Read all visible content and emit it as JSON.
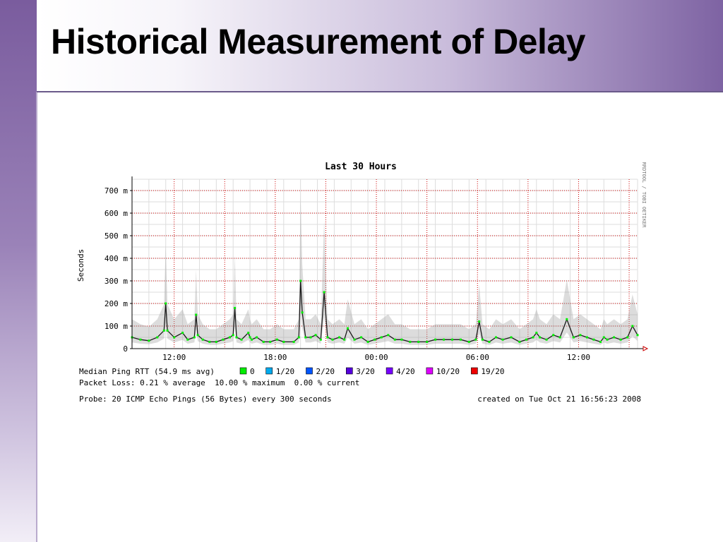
{
  "slide": {
    "title": "Historical Measurement of Delay"
  },
  "colors": {
    "median": "#1a1a1a",
    "loss_0": "#00ee00",
    "loss_1_20": "#00aaee",
    "loss_2_20": "#0055ff",
    "loss_3_20": "#5500dd",
    "loss_4_20": "#7700ff",
    "loss_10_20": "#dd00ff",
    "loss_19_20": "#ee0000",
    "grid_major": "#cc0000",
    "grid_minor": "#dddddd"
  },
  "chart_data": {
    "type": "line",
    "title": "Last 30 Hours",
    "ylabel": "Seconds",
    "side_label": "RRDTOOL / TOBI OETIKER",
    "ylim": [
      0,
      0.75
    ],
    "yticks": [
      {
        "value": 0,
        "label": "0"
      },
      {
        "value": 0.1,
        "label": "100 m"
      },
      {
        "value": 0.2,
        "label": "200 m"
      },
      {
        "value": 0.3,
        "label": "300 m"
      },
      {
        "value": 0.4,
        "label": "400 m"
      },
      {
        "value": 0.5,
        "label": "500 m"
      },
      {
        "value": 0.6,
        "label": "600 m"
      },
      {
        "value": 0.7,
        "label": "700 m"
      }
    ],
    "xlim_hours": [
      0,
      30
    ],
    "xticks": [
      {
        "hour": 2.5,
        "label": "12:00"
      },
      {
        "hour": 8.5,
        "label": "18:00"
      },
      {
        "hour": 14.5,
        "label": "00:00"
      },
      {
        "hour": 20.5,
        "label": "06:00"
      },
      {
        "hour": 26.5,
        "label": "12:00"
      }
    ],
    "series": [
      {
        "name": "Median Ping RTT",
        "x_hours": [
          0,
          0.5,
          1,
          1.5,
          1.9,
          2.0,
          2.1,
          2.5,
          3,
          3.3,
          3.7,
          3.8,
          3.9,
          4.2,
          4.6,
          5,
          5.4,
          5.8,
          6.0,
          6.1,
          6.2,
          6.5,
          6.9,
          7.0,
          7.1,
          7.4,
          7.8,
          8.2,
          8.6,
          9.0,
          9.6,
          9.9,
          10.0,
          10.1,
          10.3,
          10.6,
          10.9,
          11.2,
          11.4,
          11.6,
          11.9,
          12.3,
          12.6,
          12.8,
          13.2,
          13.6,
          14.0,
          14.4,
          14.8,
          15.2,
          15.6,
          16.0,
          16.5,
          17,
          17.5,
          18,
          18.5,
          19,
          19.5,
          20,
          20.4,
          20.6,
          20.8,
          21.2,
          21.6,
          22.0,
          22.5,
          23,
          23.4,
          23.8,
          24.0,
          24.2,
          24.6,
          25,
          25.4,
          25.8,
          26.2,
          26.6,
          27,
          27.4,
          27.8,
          28.0,
          28.2,
          28.6,
          29,
          29.4,
          29.7,
          30
        ],
        "y": [
          0.05,
          0.04,
          0.035,
          0.05,
          0.08,
          0.2,
          0.08,
          0.05,
          0.07,
          0.04,
          0.05,
          0.15,
          0.06,
          0.04,
          0.03,
          0.03,
          0.04,
          0.05,
          0.06,
          0.18,
          0.05,
          0.04,
          0.07,
          0.05,
          0.04,
          0.05,
          0.03,
          0.03,
          0.04,
          0.03,
          0.03,
          0.05,
          0.3,
          0.16,
          0.05,
          0.05,
          0.06,
          0.04,
          0.25,
          0.05,
          0.04,
          0.05,
          0.04,
          0.09,
          0.04,
          0.05,
          0.03,
          0.04,
          0.05,
          0.06,
          0.04,
          0.04,
          0.03,
          0.03,
          0.03,
          0.04,
          0.04,
          0.04,
          0.04,
          0.03,
          0.04,
          0.12,
          0.04,
          0.03,
          0.05,
          0.04,
          0.05,
          0.03,
          0.04,
          0.05,
          0.07,
          0.05,
          0.04,
          0.06,
          0.05,
          0.13,
          0.05,
          0.06,
          0.05,
          0.04,
          0.03,
          0.05,
          0.04,
          0.05,
          0.04,
          0.05,
          0.1,
          0.06
        ]
      }
    ],
    "legend": {
      "median_label": "Median Ping RTT (54.9 ms avg)",
      "loss_items": [
        {
          "label": "0",
          "color": "#00ee00"
        },
        {
          "label": "1/20",
          "color": "#00aaee"
        },
        {
          "label": "2/20",
          "color": "#0055ff"
        },
        {
          "label": "3/20",
          "color": "#5500dd"
        },
        {
          "label": "4/20",
          "color": "#7700ff"
        },
        {
          "label": "10/20",
          "color": "#dd00ff"
        },
        {
          "label": "19/20",
          "color": "#ee0000"
        }
      ],
      "packet_loss": "Packet Loss: 0.21 % average  10.00 % maximum  0.00 % current",
      "probe": "Probe: 20 ICMP Echo Pings (56 Bytes) every 300 seconds",
      "created": "created on Tue Oct 21 16:56:23 2008"
    }
  }
}
